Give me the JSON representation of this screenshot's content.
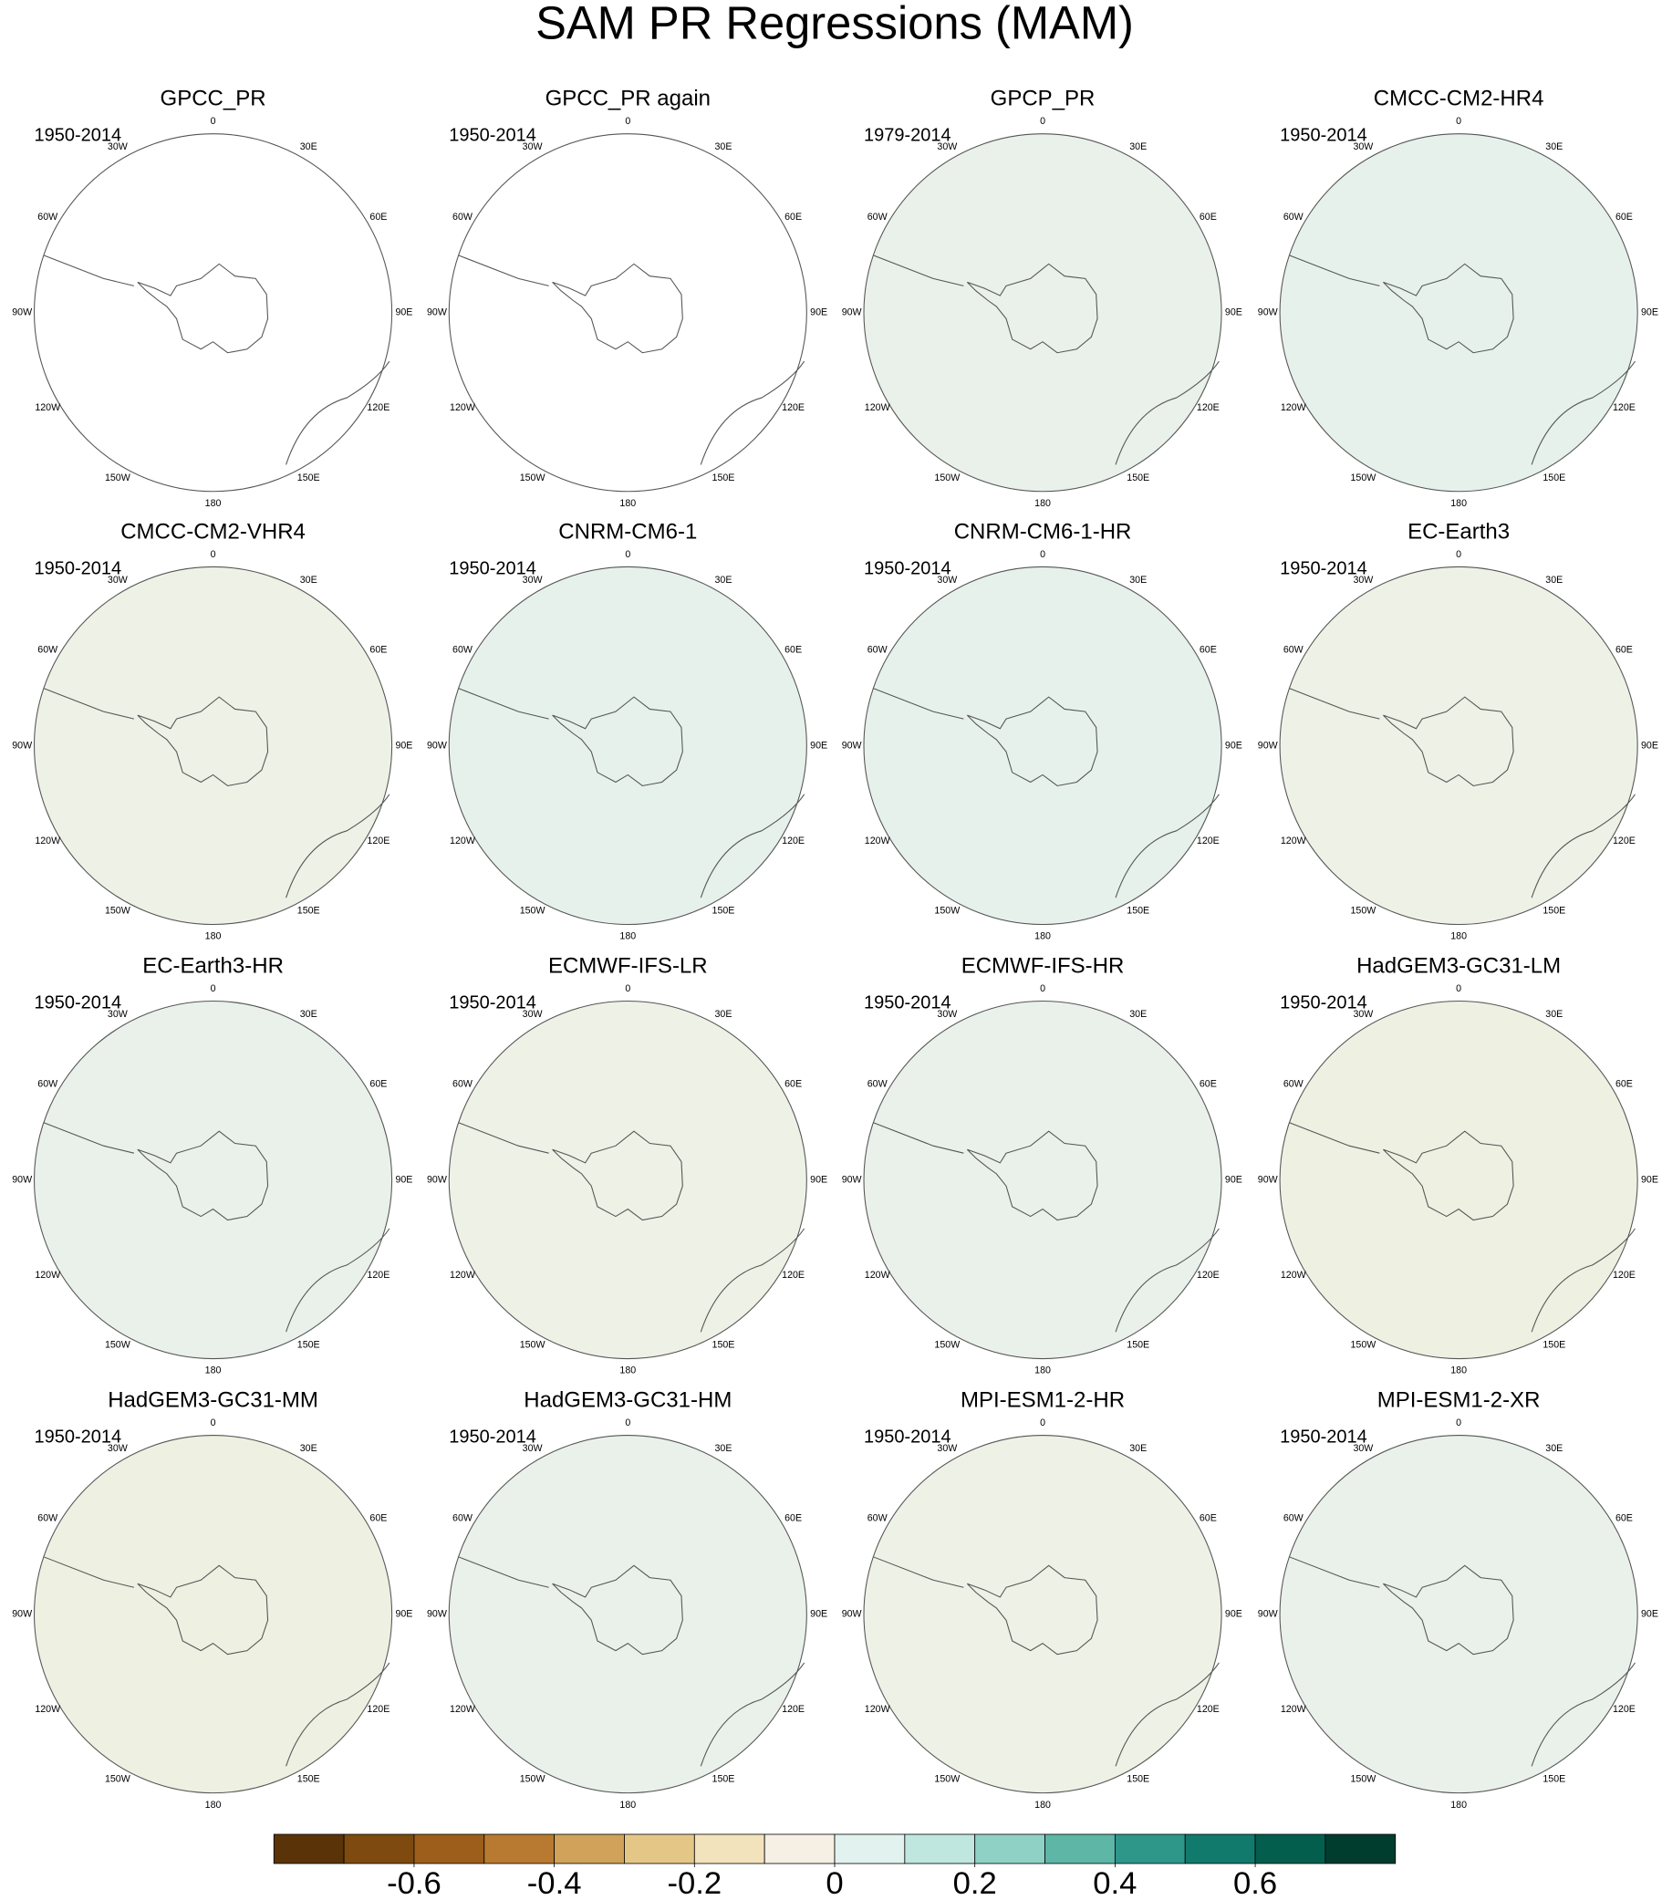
{
  "title": "SAM PR Regressions (MAM)",
  "panels": [
    {
      "title": "GPCC_PR",
      "period": "1950-2014",
      "color": "#ffffff"
    },
    {
      "title": "GPCC_PR again",
      "period": "1950-2014",
      "color": "#ffffff"
    },
    {
      "title": "GPCP_PR",
      "period": "1979-2014",
      "color": "#e9f1ea"
    },
    {
      "title": "CMCC-CM2-HR4",
      "period": "1950-2014",
      "color": "#e6f1ec"
    },
    {
      "title": "CMCC-CM2-VHR4",
      "period": "1950-2014",
      "color": "#eef1e6"
    },
    {
      "title": "CNRM-CM6-1",
      "period": "1950-2014",
      "color": "#e6f1ec"
    },
    {
      "title": "CNRM-CM6-1-HR",
      "period": "1950-2014",
      "color": "#e6f1ec"
    },
    {
      "title": "EC-Earth3",
      "period": "1950-2014",
      "color": "#eef1e6"
    },
    {
      "title": "EC-Earth3-HR",
      "period": "1950-2014",
      "color": "#e9f1ea"
    },
    {
      "title": "ECMWF-IFS-LR",
      "period": "1950-2014",
      "color": "#eef1e6"
    },
    {
      "title": "ECMWF-IFS-HR",
      "period": "1950-2014",
      "color": "#e9f1ea"
    },
    {
      "title": "HadGEM3-GC31-LM",
      "period": "1950-2014",
      "color": "#eef0e2"
    },
    {
      "title": "HadGEM3-GC31-MM",
      "period": "1950-2014",
      "color": "#eef0e2"
    },
    {
      "title": "HadGEM3-GC31-HM",
      "period": "1950-2014",
      "color": "#e9f1ea"
    },
    {
      "title": "MPI-ESM1-2-HR",
      "period": "1950-2014",
      "color": "#eef1e6"
    },
    {
      "title": "MPI-ESM1-2-XR",
      "period": "1950-2014",
      "color": "#e9f1ea"
    }
  ],
  "lon_labels": [
    "0",
    "30E",
    "60E",
    "90E",
    "120E",
    "150E",
    "180",
    "150W",
    "120W",
    "90W",
    "60W",
    "30W"
  ],
  "colorbar": {
    "colors": [
      "#5a3408",
      "#7e4a0f",
      "#9c5e1a",
      "#b87a31",
      "#d0a25a",
      "#e4c787",
      "#f3e3bd",
      "#f5f0e3",
      "#e2f2ef",
      "#bfe6df",
      "#8fd1c4",
      "#5db6a6",
      "#2f968a",
      "#127a6d",
      "#035e4e",
      "#003d2f"
    ],
    "lim": [
      -0.8,
      0.8
    ],
    "ticks": [
      -0.6,
      -0.4,
      -0.2,
      0,
      0.2,
      0.4,
      0.6
    ]
  }
}
